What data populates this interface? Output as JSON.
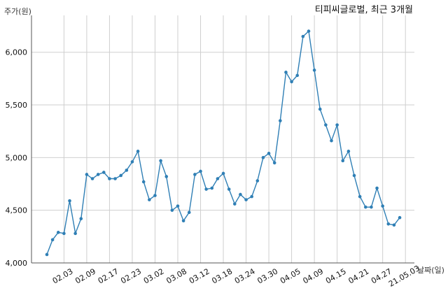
{
  "chart_data": {
    "type": "line",
    "title": "티피씨글로벌, 최근 3개월",
    "ylabel": "주가(원)",
    "xlabel": "날짜(일)",
    "ylim": [
      4000,
      6350
    ],
    "yticks": [
      4000,
      4500,
      5000,
      5500,
      6000
    ],
    "ytick_labels": [
      "4,000",
      "4,500",
      "5,000",
      "5,500",
      "6,000"
    ],
    "xtick_labels": [
      "02.03",
      "02.09",
      "02.17",
      "02.23",
      "03.02",
      "03.08",
      "03.12",
      "03.18",
      "03.24",
      "03.30",
      "04.05",
      "04.09",
      "04.15",
      "04.21",
      "04.27",
      "21.05.03"
    ],
    "xtick_index": [
      3,
      7,
      11,
      15,
      19,
      23,
      27,
      31,
      35,
      39,
      43,
      47,
      51,
      55,
      59,
      63
    ],
    "grid": true,
    "series_color": "#2f7fb5",
    "values": [
      4080,
      4220,
      4290,
      4280,
      4590,
      4280,
      4420,
      4840,
      4800,
      4840,
      4860,
      4800,
      4800,
      4830,
      4880,
      4960,
      5060,
      4770,
      4600,
      4640,
      4970,
      4820,
      4500,
      4540,
      4400,
      4480,
      4840,
      4870,
      4700,
      4710,
      4800,
      4850,
      4700,
      4560,
      4650,
      4600,
      4630,
      4780,
      5000,
      5040,
      4950,
      5350,
      5810,
      5720,
      5780,
      6150,
      6200,
      5830,
      5460,
      5310,
      5160,
      5310,
      4970,
      5060,
      4830,
      4630,
      4530,
      4530,
      4710,
      4540,
      4370,
      4360,
      4430
    ]
  }
}
